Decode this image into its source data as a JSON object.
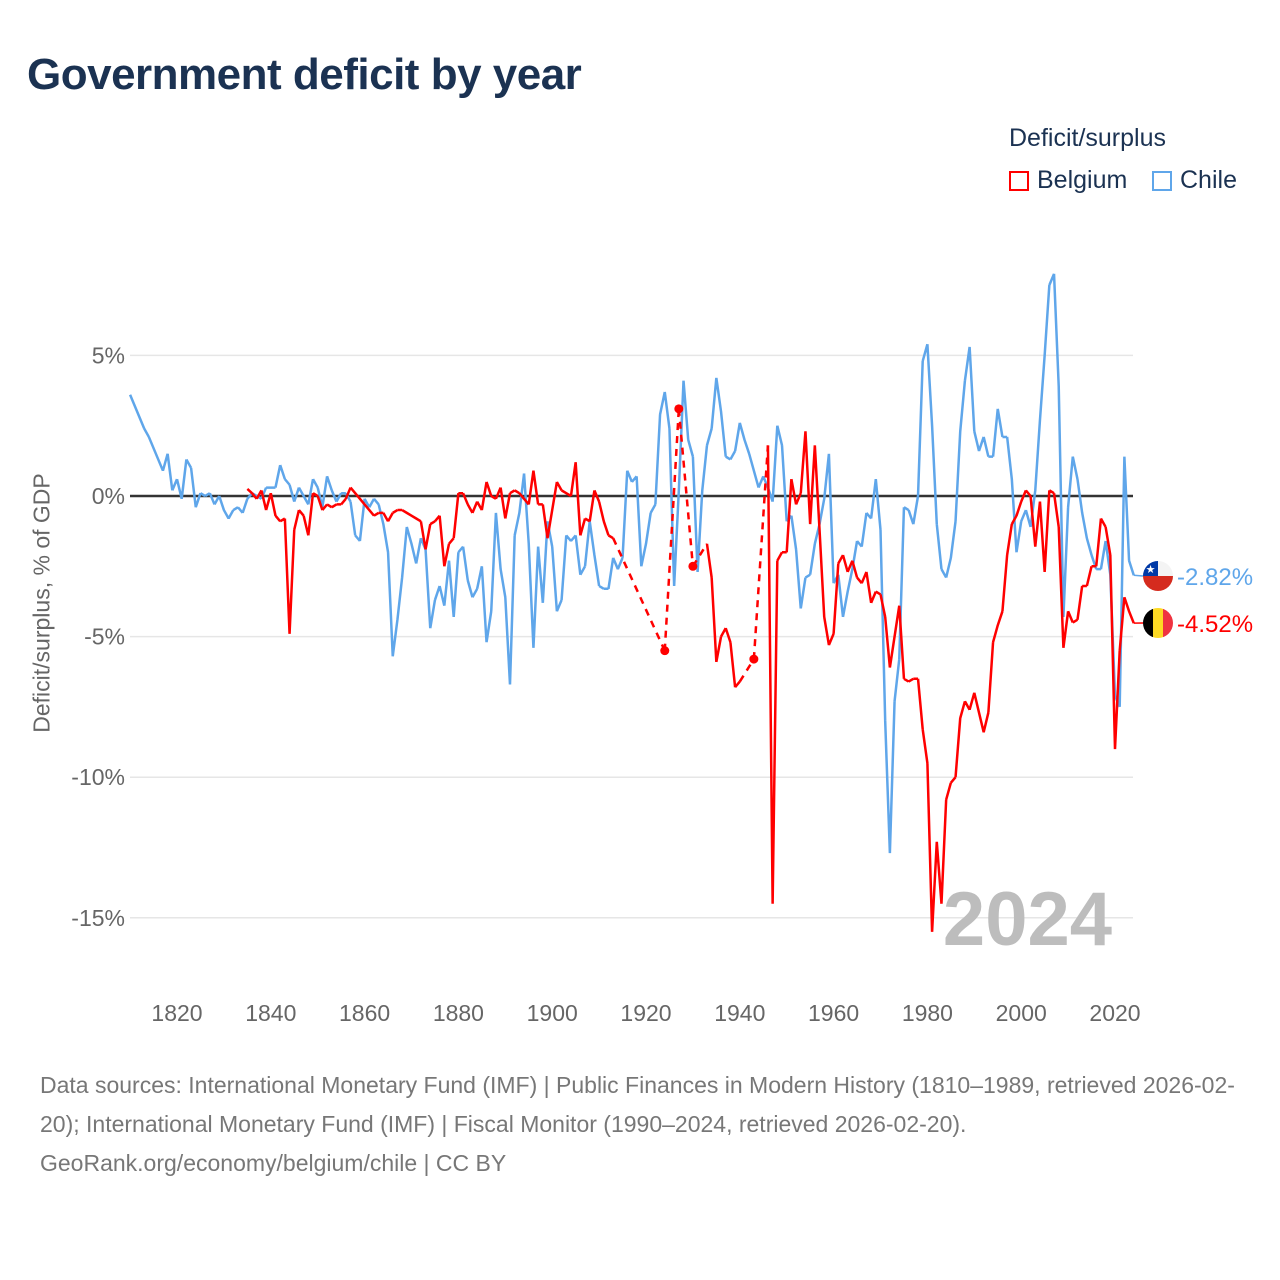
{
  "title": "Government deficit by year",
  "legend": {
    "title": "Deficit/surplus",
    "items": [
      {
        "label": "Belgium",
        "color": "#ff0000"
      },
      {
        "label": "Chile",
        "color": "#5fa6ea"
      }
    ]
  },
  "footer": {
    "sources": "Data sources: International Monetary Fund (IMF) | Public Finances in Modern History (1810–1989, retrieved 2026-02-20); International Monetary Fund (IMF) | Fiscal Monitor (1990–2024, retrieved 2026-02-20).",
    "credit": "GeoRank.org/economy/belgium/chile | CC BY"
  },
  "chart_data": {
    "type": "line",
    "title": "Government deficit by year",
    "xlabel": "",
    "ylabel": "Deficit/surplus, % of GDP",
    "xlim": [
      1810,
      2024
    ],
    "ylim": [
      -17,
      8.5
    ],
    "x_ticks": [
      1820,
      1840,
      1860,
      1880,
      1900,
      1920,
      1940,
      1960,
      1980,
      2000,
      2020
    ],
    "y_ticks": [
      {
        "v": 5,
        "label": "5%"
      },
      {
        "v": 0,
        "label": "0%"
      },
      {
        "v": -5,
        "label": "-5%"
      },
      {
        "v": -10,
        "label": "-10%"
      },
      {
        "v": -15,
        "label": "-15%"
      }
    ],
    "grid": true,
    "legend_position": "top-right",
    "year_label": "2024",
    "series": [
      {
        "name": "Chile",
        "color": "#5fa6ea",
        "start_year": 1810,
        "end_label": "-2.82%",
        "values": [
          3.6,
          3.2,
          2.8,
          2.4,
          2.1,
          1.7,
          1.3,
          0.9,
          1.5,
          0.2,
          0.6,
          -0.1,
          1.3,
          1.0,
          -0.4,
          0.1,
          0,
          0.1,
          -0.3,
          0,
          -0.5,
          -0.8,
          -0.5,
          -0.4,
          -0.6,
          -0.1,
          0.1,
          0,
          -0.1,
          0.3,
          0.3,
          0.3,
          1.1,
          0.6,
          0.4,
          -0.2,
          0.3,
          0,
          -0.3,
          0.6,
          0.3,
          -0.4,
          0.7,
          0.2,
          -0.2,
          0.1,
          0.1,
          -0.2,
          -1.4,
          -1.6,
          -0.1,
          -0.4,
          -0.1,
          -0.3,
          -1.0,
          -2.0,
          -5.7,
          -4.4,
          -2.9,
          -1.1,
          -1.7,
          -2.4,
          -1.5,
          -1.9,
          -4.7,
          -3.7,
          -3.2,
          -3.9,
          -2.3,
          -4.3,
          -2.0,
          -1.8,
          -3.0,
          -3.6,
          -3.3,
          -2.5,
          -5.2,
          -4.1,
          -0.6,
          -2.6,
          -3.6,
          -6.7,
          -1.4,
          -0.6,
          0.8,
          -1.7,
          -5.4,
          -1.8,
          -3.8,
          -0.9,
          -1.8,
          -4.1,
          -3.7,
          -1.4,
          -1.6,
          -1.4,
          -2.8,
          -2.5,
          -0.9,
          -2.1,
          -3.2,
          -3.3,
          -3.3,
          -2.2,
          -2.6,
          -2.2,
          0.9,
          0.5,
          0.7,
          -2.5,
          -1.7,
          -0.6,
          -0.3,
          2.9,
          3.7,
          2.4,
          -3.2,
          0.2,
          4.1,
          2.0,
          1.4,
          -2.7,
          0.2,
          1.8,
          2.4,
          4.2,
          3.0,
          1.4,
          1.3,
          1.6,
          2.6,
          2.0,
          1.5,
          0.9,
          0.3,
          0.7,
          0.3,
          -0.2,
          2.5,
          1.8,
          -0.9,
          -0.7,
          -1.9,
          -4.0,
          -2.9,
          -2.8,
          -1.7,
          -1.0,
          -0.1,
          1.5,
          -3.1,
          -2.8,
          -4.3,
          -3.4,
          -2.6,
          -1.6,
          -1.8,
          -0.6,
          -0.8,
          0.6,
          -1.2,
          -8.0,
          -12.7,
          -7.3,
          -5.8,
          -0.4,
          -0.5,
          -1.0,
          0.0,
          4.8,
          5.4,
          2.5,
          -1.0,
          -2.6,
          -2.9,
          -2.2,
          -0.9,
          2.3,
          4.1,
          5.3,
          2.3,
          1.6,
          2.1,
          1.4,
          1.4,
          3.1,
          2.1,
          2.1,
          0.6,
          -2.0,
          -0.9,
          -0.5,
          -1.1,
          0.2,
          2.7,
          5.0,
          7.5,
          7.9,
          3.9,
          -4.3,
          -0.4,
          1.4,
          0.6,
          -0.6,
          -1.5,
          -2.1,
          -2.6,
          -2.6,
          -1.6,
          -2.8,
          -7.1,
          -7.5,
          1.4,
          -2.3,
          -2.82
        ]
      },
      {
        "name": "Belgium",
        "color": "#ff0000",
        "start_year": 1835,
        "end_label": "-4.52%",
        "values": [
          0.25,
          0.1,
          -0.1,
          0.2,
          -0.5,
          0.1,
          -0.7,
          -0.9,
          -0.8,
          -4.9,
          -1.2,
          -0.5,
          -0.7,
          -1.4,
          0.1,
          0,
          -0.5,
          -0.3,
          -0.4,
          -0.3,
          -0.3,
          -0.1,
          0.3,
          0.1,
          -0.1,
          -0.3,
          -0.5,
          -0.7,
          -0.6,
          -0.6,
          -0.9,
          -0.6,
          -0.5,
          -0.5,
          -0.6,
          -0.7,
          -0.8,
          -0.9,
          -1.9,
          -1.0,
          -0.9,
          -0.7,
          -2.5,
          -1.7,
          -1.5,
          0.1,
          0.1,
          -0.3,
          -0.6,
          -0.2,
          -0.5,
          0.5,
          0,
          -0.1,
          0.3,
          -0.8,
          0.1,
          0.2,
          0.1,
          -0.1,
          -0.3,
          0.9,
          -0.3,
          -0.3,
          -1.5,
          -0.5,
          0.5,
          0.2,
          0.1,
          0,
          1.2,
          -1.4,
          -0.8,
          -0.9,
          0.2,
          -0.2,
          -0.9,
          -1.4,
          -1.5,
          null,
          null,
          null,
          null,
          null,
          null,
          null,
          null,
          null,
          null,
          -5.5,
          null,
          null,
          3.1,
          null,
          null,
          -2.5,
          null,
          null,
          -1.7,
          -2.9,
          -5.9,
          -5.0,
          -4.7,
          -5.2,
          -6.8,
          -6.6,
          null,
          null,
          -5.8,
          null,
          null,
          1.8,
          -14.5,
          -2.3,
          -2.0,
          -2.0,
          0.6,
          -0.3,
          0.1,
          2.3,
          -1.0,
          1.8,
          -1.2,
          -4.3,
          -5.3,
          -4.9,
          -2.4,
          -2.1,
          -2.7,
          -2.3,
          -2.9,
          -3.1,
          -2.7,
          -3.8,
          -3.4,
          -3.5,
          -4.3,
          -6.1,
          -5.0,
          -3.9,
          -6.5,
          -6.6,
          -6.5,
          -6.5,
          -8.3,
          -9.5,
          -15.5,
          -12.3,
          -14.5,
          -10.8,
          -10.2,
          -10.0,
          -7.9,
          -7.3,
          -7.6,
          -7.0,
          -7.7,
          -8.4,
          -7.7,
          -5.2,
          -4.6,
          -4.1,
          -2.1,
          -1.0,
          -0.7,
          -0.2,
          0.2,
          0,
          -1.8,
          -0.2,
          -2.7,
          0.2,
          0.1,
          -1.1,
          -5.4,
          -4.1,
          -4.5,
          -4.4,
          -3.2,
          -3.2,
          -2.5,
          -2.5,
          -0.8,
          -1.1,
          -2.1,
          -9.0,
          -5.5,
          -3.6,
          -4.1,
          -4.52
        ]
      }
    ]
  }
}
